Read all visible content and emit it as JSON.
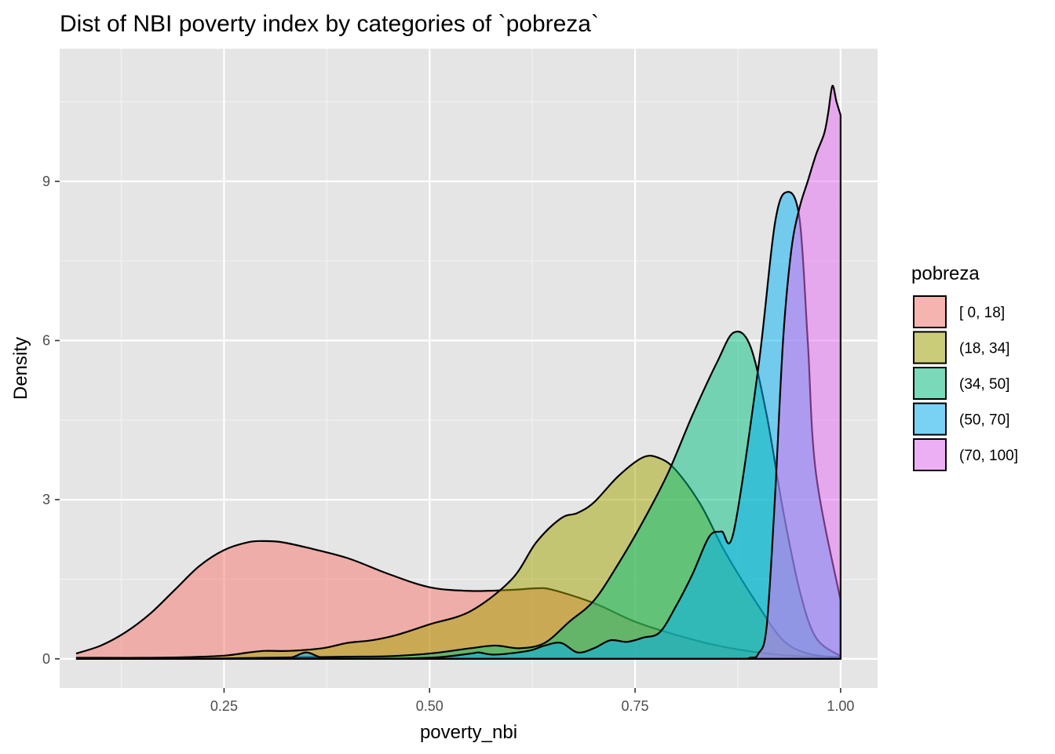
{
  "chart_data": {
    "type": "area",
    "title": "Dist of NBI poverty index by categories of `pobreza`",
    "xlabel": "poverty_nbi",
    "ylabel": "Density",
    "xlim": [
      0.05,
      1.045
    ],
    "ylim": [
      -0.55,
      11.5
    ],
    "x_ticks": [
      0.25,
      0.5,
      0.75,
      1.0
    ],
    "x_tick_labels": [
      "0.25",
      "0.50",
      "0.75",
      "1.00"
    ],
    "y_ticks": [
      0,
      3,
      6,
      9
    ],
    "y_tick_labels": [
      "0",
      "3",
      "6",
      "9"
    ],
    "x_minor": [
      0.125,
      0.375,
      0.625,
      0.875
    ],
    "y_minor": [
      1.5,
      4.5,
      7.5,
      10.5
    ],
    "grid": true,
    "background": "#e5e5e5",
    "fill_opacity": 0.5,
    "legend": {
      "title": "pobreza",
      "position": "right",
      "entries": [
        "[ 0, 18]",
        "(18, 34]",
        "(34, 50]",
        "(50, 70]",
        "(70, 100]"
      ]
    },
    "series": [
      {
        "name": "[ 0, 18]",
        "color": "#F8766D",
        "x": [
          0.07,
          0.1,
          0.13,
          0.16,
          0.19,
          0.22,
          0.25,
          0.28,
          0.3,
          0.32,
          0.35,
          0.4,
          0.45,
          0.5,
          0.55,
          0.6,
          0.63,
          0.65,
          0.7,
          0.75,
          0.8,
          0.85,
          0.9,
          0.95,
          1.0
        ],
        "y": [
          0.1,
          0.25,
          0.5,
          0.85,
          1.3,
          1.75,
          2.05,
          2.2,
          2.22,
          2.2,
          2.1,
          1.9,
          1.6,
          1.35,
          1.28,
          1.3,
          1.33,
          1.3,
          1.05,
          0.7,
          0.45,
          0.25,
          0.12,
          0.05,
          0.04
        ]
      },
      {
        "name": "(18, 34]",
        "color": "#A3A500",
        "x": [
          0.07,
          0.1,
          0.15,
          0.2,
          0.25,
          0.28,
          0.3,
          0.33,
          0.37,
          0.4,
          0.43,
          0.46,
          0.5,
          0.55,
          0.6,
          0.63,
          0.66,
          0.68,
          0.7,
          0.73,
          0.76,
          0.78,
          0.8,
          0.83,
          0.86,
          0.9,
          0.93,
          0.96,
          1.0
        ],
        "y": [
          0.02,
          0.02,
          0.02,
          0.03,
          0.06,
          0.12,
          0.15,
          0.15,
          0.2,
          0.3,
          0.35,
          0.45,
          0.65,
          0.9,
          1.5,
          2.2,
          2.65,
          2.75,
          2.95,
          3.45,
          3.8,
          3.78,
          3.55,
          2.9,
          2.0,
          1.0,
          0.35,
          0.1,
          0.02
        ]
      },
      {
        "name": "(34, 50]",
        "color": "#00BF7D",
        "x": [
          0.07,
          0.1,
          0.2,
          0.3,
          0.35,
          0.4,
          0.45,
          0.5,
          0.55,
          0.58,
          0.61,
          0.64,
          0.67,
          0.7,
          0.73,
          0.76,
          0.79,
          0.82,
          0.85,
          0.87,
          0.89,
          0.91,
          0.93,
          0.95,
          0.97,
          1.0
        ],
        "y": [
          0.0,
          0.0,
          0.0,
          0.02,
          0.03,
          0.04,
          0.05,
          0.1,
          0.2,
          0.25,
          0.2,
          0.3,
          0.7,
          1.1,
          1.8,
          2.6,
          3.5,
          4.6,
          5.6,
          6.15,
          5.9,
          4.6,
          2.8,
          1.3,
          0.4,
          0.05
        ]
      },
      {
        "name": "(50, 70]",
        "color": "#00B0F6",
        "x": [
          0.07,
          0.2,
          0.3,
          0.33,
          0.35,
          0.37,
          0.4,
          0.5,
          0.55,
          0.56,
          0.58,
          0.62,
          0.64,
          0.66,
          0.68,
          0.7,
          0.72,
          0.74,
          0.76,
          0.78,
          0.8,
          0.82,
          0.84,
          0.855,
          0.87,
          0.9,
          0.92,
          0.935,
          0.95,
          0.96,
          0.97,
          1.0
        ],
        "y": [
          0.0,
          0.0,
          0.0,
          0.02,
          0.12,
          0.02,
          0.0,
          0.02,
          0.1,
          0.12,
          0.08,
          0.15,
          0.25,
          0.3,
          0.12,
          0.2,
          0.35,
          0.32,
          0.4,
          0.5,
          1.0,
          1.6,
          2.3,
          2.4,
          2.4,
          5.5,
          8.2,
          8.8,
          8.3,
          6.0,
          3.5,
          1.1
        ]
      },
      {
        "name": "(70, 100]",
        "color": "#E76BF3",
        "x": [
          0.07,
          0.5,
          0.85,
          0.89,
          0.9,
          0.91,
          0.92,
          0.93,
          0.94,
          0.95,
          0.96,
          0.97,
          0.98,
          0.985,
          0.99,
          0.995,
          1.0
        ],
        "y": [
          0.0,
          0.0,
          0.0,
          0.02,
          0.1,
          0.6,
          3.0,
          6.0,
          7.7,
          8.5,
          9.0,
          9.5,
          9.9,
          10.3,
          10.8,
          10.5,
          10.25
        ]
      }
    ]
  }
}
